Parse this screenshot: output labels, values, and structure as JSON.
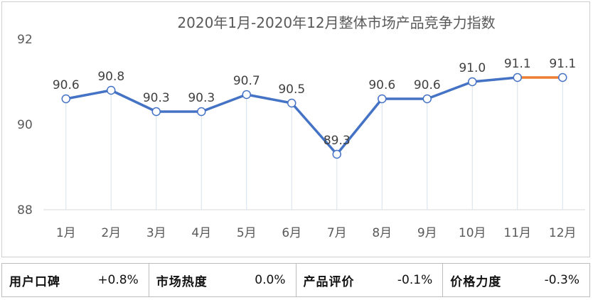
{
  "chart_data": {
    "type": "line",
    "title": "2020年1月-2020年12月整体市场产品竞争力指数",
    "categories": [
      "1月",
      "2月",
      "3月",
      "4月",
      "5月",
      "6月",
      "7月",
      "8月",
      "9月",
      "10月",
      "11月",
      "12月"
    ],
    "values": [
      90.6,
      90.8,
      90.3,
      90.3,
      90.7,
      90.5,
      89.3,
      90.6,
      90.6,
      91.0,
      91.1,
      91.1
    ],
    "value_labels": [
      "90.6",
      "90.8",
      "90.3",
      "90.3",
      "90.7",
      "90.5",
      "89.3",
      "90.6",
      "90.6",
      "91.0",
      "91.1",
      "91.1"
    ],
    "yticks": [
      "88",
      "90",
      "92"
    ],
    "ytick_values": [
      88,
      90,
      92
    ],
    "ylim": [
      88,
      92
    ],
    "xlabel": "",
    "ylabel": "",
    "grid": false,
    "line_color": "#4472C4",
    "highlight_segment_color": "#ED7D31",
    "highlight_segment": [
      "11月",
      "12月"
    ]
  },
  "metrics": [
    {
      "label": "用户口碑",
      "value": "+0.8%"
    },
    {
      "label": "市场热度",
      "value": "0.0%"
    },
    {
      "label": "产品评价",
      "value": "-0.1%"
    },
    {
      "label": "价格力度",
      "value": "-0.3%"
    }
  ]
}
